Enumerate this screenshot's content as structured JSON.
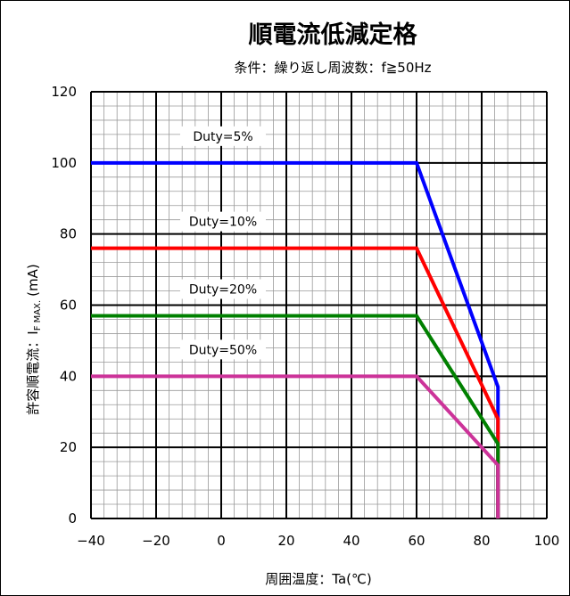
{
  "chart_data": {
    "type": "line",
    "title": "順電流低減定格",
    "subtitle": "条件：繰り返し周波数：f≧50Hz",
    "xlabel": "周囲温度：Ta(℃)",
    "ylabel_main": "許容順電流：I",
    "ylabel_sub": "F MAX.",
    "ylabel_unit": "(mA)",
    "xlim": [
      -40,
      100
    ],
    "ylim": [
      0,
      120
    ],
    "x_ticks": [
      -40,
      -20,
      0,
      20,
      40,
      60,
      80,
      100
    ],
    "x_tick_labels": [
      "−40",
      "−20",
      "0",
      "20",
      "40",
      "60",
      "80",
      "100"
    ],
    "y_ticks": [
      0,
      20,
      40,
      60,
      80,
      100,
      120
    ],
    "y_tick_labels": [
      "0",
      "20",
      "40",
      "60",
      "80",
      "100",
      "120"
    ],
    "grid": true,
    "series": [
      {
        "name": "Duty=5%",
        "color": "#0000ff",
        "x": [
          -40,
          60,
          85,
          85
        ],
        "y": [
          100,
          100,
          37,
          0
        ]
      },
      {
        "name": "Duty=10%",
        "color": "#ff0000",
        "x": [
          -40,
          60,
          85,
          85
        ],
        "y": [
          76,
          76,
          28,
          0
        ]
      },
      {
        "name": "Duty=20%",
        "color": "#008000",
        "x": [
          -40,
          60,
          85,
          85
        ],
        "y": [
          57,
          57,
          21,
          0
        ]
      },
      {
        "name": "Duty=50%",
        "color": "#cc3399",
        "x": [
          -40,
          60,
          85,
          85
        ],
        "y": [
          40,
          40,
          15,
          0
        ]
      }
    ]
  }
}
